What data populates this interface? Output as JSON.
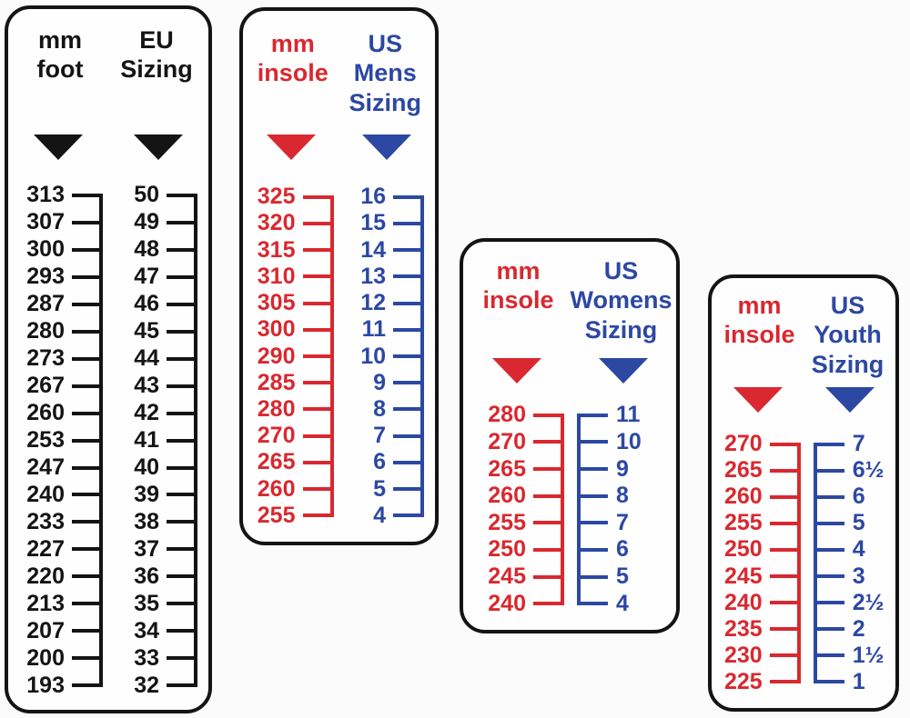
{
  "colors": {
    "black": "#141414",
    "red": "#d9282f",
    "blue": "#2c48a2"
  },
  "panels": [
    {
      "id": "mm-foot-to-eu",
      "columns": [
        {
          "header": "mm\nfoot",
          "color": "#141414",
          "numbers_side": "left",
          "values": [
            "313",
            "307",
            "300",
            "293",
            "287",
            "280",
            "273",
            "267",
            "260",
            "253",
            "247",
            "240",
            "233",
            "227",
            "220",
            "213",
            "207",
            "200",
            "193"
          ]
        },
        {
          "header": "EU\nSizing",
          "color": "#141414",
          "numbers_side": "left",
          "values": [
            "50",
            "49",
            "48",
            "47",
            "46",
            "45",
            "44",
            "43",
            "42",
            "41",
            "40",
            "39",
            "38",
            "37",
            "36",
            "35",
            "34",
            "33",
            "32"
          ]
        }
      ]
    },
    {
      "id": "mm-insole-to-us-mens",
      "columns": [
        {
          "header": "mm\ninsole",
          "color": "#d9282f",
          "numbers_side": "left",
          "values": [
            "325",
            "320",
            "315",
            "310",
            "305",
            "300",
            "290",
            "285",
            "280",
            "270",
            "265",
            "260",
            "255"
          ]
        },
        {
          "header": "US\nMens\nSizing",
          "color": "#2c48a2",
          "numbers_side": "left",
          "values": [
            "16",
            "15",
            "14",
            "13",
            "12",
            "11",
            "10",
            "9",
            "8",
            "7",
            "6",
            "5",
            "4"
          ]
        }
      ]
    },
    {
      "id": "mm-insole-to-us-womens",
      "columns": [
        {
          "header": "mm\ninsole",
          "color": "#d9282f",
          "numbers_side": "left",
          "values": [
            "280",
            "270",
            "265",
            "260",
            "255",
            "250",
            "245",
            "240"
          ]
        },
        {
          "header": "US\nWomens\nSizing",
          "color": "#2c48a2",
          "numbers_side": "right",
          "values": [
            "11",
            "10",
            "9",
            "8",
            "7",
            "6",
            "5",
            "4"
          ]
        }
      ]
    },
    {
      "id": "mm-insole-to-us-youth",
      "columns": [
        {
          "header": "mm\ninsole",
          "color": "#d9282f",
          "numbers_side": "left",
          "values": [
            "270",
            "265",
            "260",
            "255",
            "250",
            "245",
            "240",
            "235",
            "230",
            "225"
          ]
        },
        {
          "header": "US\nYouth\nSizing",
          "color": "#2c48a2",
          "numbers_side": "right",
          "values": [
            "7",
            "6½",
            "6",
            "5",
            "4",
            "3",
            "2½",
            "2",
            "1½",
            "1"
          ]
        }
      ]
    }
  ],
  "chart_data": [
    {
      "type": "table",
      "title": "mm foot to EU Sizing",
      "columns": [
        "mm foot",
        "EU Sizing"
      ],
      "rows": [
        [
          313,
          50
        ],
        [
          307,
          49
        ],
        [
          300,
          48
        ],
        [
          293,
          47
        ],
        [
          287,
          46
        ],
        [
          280,
          45
        ],
        [
          273,
          44
        ],
        [
          267,
          43
        ],
        [
          260,
          42
        ],
        [
          253,
          41
        ],
        [
          247,
          40
        ],
        [
          240,
          39
        ],
        [
          233,
          38
        ],
        [
          227,
          37
        ],
        [
          220,
          36
        ],
        [
          213,
          35
        ],
        [
          207,
          34
        ],
        [
          200,
          33
        ],
        [
          193,
          32
        ]
      ]
    },
    {
      "type": "table",
      "title": "mm insole to US Mens Sizing",
      "columns": [
        "mm insole",
        "US Mens Sizing"
      ],
      "rows": [
        [
          325,
          16
        ],
        [
          320,
          15
        ],
        [
          315,
          14
        ],
        [
          310,
          13
        ],
        [
          305,
          12
        ],
        [
          300,
          11
        ],
        [
          290,
          10
        ],
        [
          285,
          9
        ],
        [
          280,
          8
        ],
        [
          270,
          7
        ],
        [
          265,
          6
        ],
        [
          260,
          5
        ],
        [
          255,
          4
        ]
      ]
    },
    {
      "type": "table",
      "title": "mm insole to US Womens Sizing",
      "columns": [
        "mm insole",
        "US Womens Sizing"
      ],
      "rows": [
        [
          280,
          11
        ],
        [
          270,
          10
        ],
        [
          265,
          9
        ],
        [
          260,
          8
        ],
        [
          255,
          7
        ],
        [
          250,
          6
        ],
        [
          245,
          5
        ],
        [
          240,
          4
        ]
      ]
    },
    {
      "type": "table",
      "title": "mm insole to US Youth Sizing",
      "columns": [
        "mm insole",
        "US Youth Sizing"
      ],
      "rows": [
        [
          270,
          "7"
        ],
        [
          265,
          "6½"
        ],
        [
          260,
          "6"
        ],
        [
          255,
          "5"
        ],
        [
          250,
          "4"
        ],
        [
          245,
          "3"
        ],
        [
          240,
          "2½"
        ],
        [
          235,
          "2"
        ],
        [
          230,
          "1½"
        ],
        [
          225,
          "1"
        ]
      ]
    }
  ]
}
